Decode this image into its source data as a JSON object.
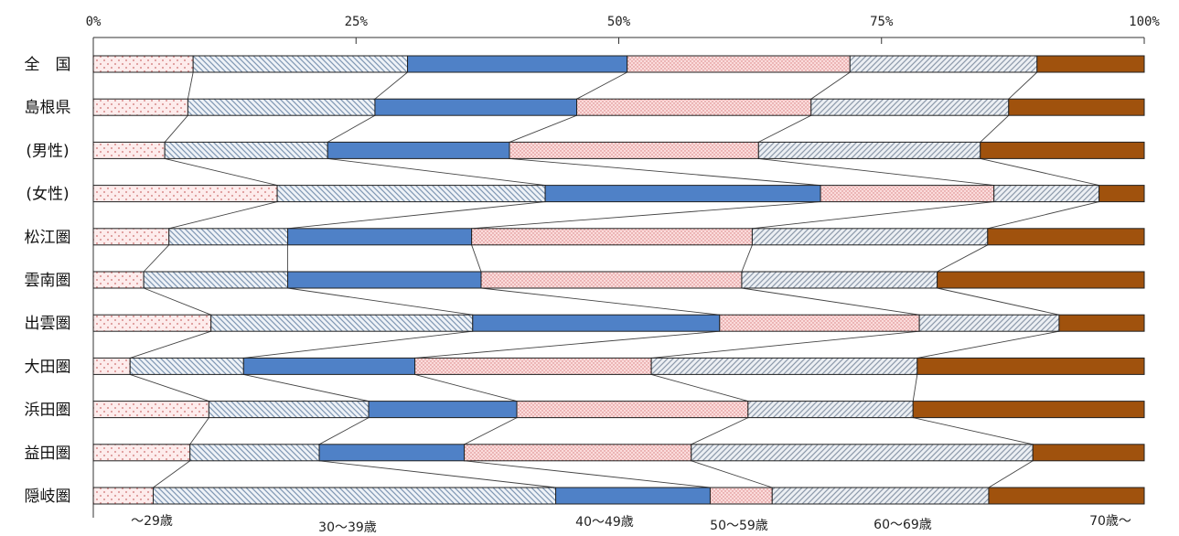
{
  "chart_data": {
    "type": "bar",
    "stacked": true,
    "orientation": "horizontal",
    "normalized": true,
    "x_ticks": [
      "0%",
      "25%",
      "50%",
      "75%",
      "100%"
    ],
    "xlim": [
      0,
      100
    ],
    "categories": [
      "全　国",
      "島根県",
      "(男性)",
      "(女性)",
      "松江圏",
      "雲南圏",
      "出雲圏",
      "大田圏",
      "浜田圏",
      "益田圏",
      "隠岐圏"
    ],
    "series": [
      {
        "name": "～29歳",
        "color": "#fde8e8",
        "pattern": "dots",
        "values": [
          9.5,
          9.0,
          6.8,
          17.5,
          7.2,
          4.8,
          11.2,
          3.5,
          11.0,
          9.2,
          5.7
        ]
      },
      {
        "name": "30～39歳",
        "color": "#e8eef5",
        "pattern": "diag-back",
        "values": [
          20.4,
          17.8,
          15.5,
          25.5,
          11.3,
          13.7,
          24.9,
          10.8,
          15.2,
          12.3,
          38.3
        ]
      },
      {
        "name": "40～49歳",
        "color": "#4f81c7",
        "pattern": "solid",
        "values": [
          20.9,
          19.2,
          17.3,
          26.2,
          17.5,
          18.4,
          23.5,
          16.3,
          14.1,
          13.8,
          14.7
        ]
      },
      {
        "name": "50～59歳",
        "color": "#fad4d4",
        "pattern": "dense-dots",
        "values": [
          21.2,
          22.3,
          23.7,
          16.5,
          26.7,
          24.8,
          19.0,
          22.5,
          22.0,
          21.6,
          5.9
        ]
      },
      {
        "name": "60～69歳",
        "color": "#e4e8ee",
        "pattern": "diag-fwd",
        "values": [
          17.8,
          18.8,
          21.1,
          10.0,
          22.4,
          18.6,
          13.3,
          25.3,
          15.7,
          32.5,
          20.6
        ]
      },
      {
        "name": "70歳～",
        "color": "#a0520d",
        "pattern": "solid",
        "values": [
          10.2,
          12.9,
          15.6,
          4.3,
          14.9,
          19.7,
          8.1,
          21.6,
          22.0,
          10.6,
          14.8
        ]
      }
    ],
    "legend": [
      "～29歳",
      "30～39歳",
      "40～49歳",
      "50～59歳",
      "60～69歳",
      "70歳～"
    ],
    "legend_placement": "bottom",
    "connector_lines": true,
    "grid": false
  }
}
